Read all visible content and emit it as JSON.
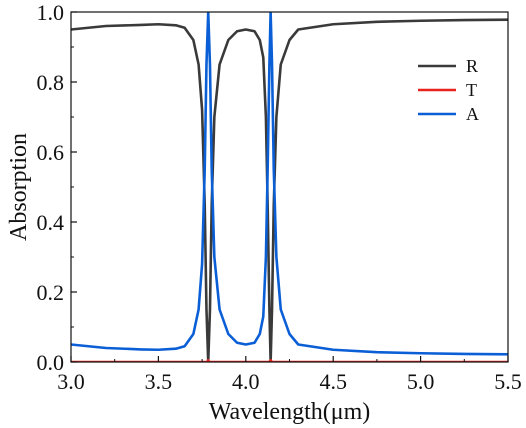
{
  "chart_data": {
    "type": "line",
    "xlabel": "Wavelength(μm)",
    "ylabel": "Absorption",
    "xlim": [
      3.0,
      5.5
    ],
    "ylim": [
      0.0,
      1.0
    ],
    "x_ticks": [
      "3.0",
      "3.5",
      "4.0",
      "4.5",
      "5.0",
      "5.5"
    ],
    "y_ticks": [
      "0.0",
      "0.2",
      "0.4",
      "0.6",
      "0.8",
      "1.0"
    ],
    "grid": false,
    "legend_position": "top-right",
    "series": [
      {
        "name": "R",
        "color": "#3a3a3a",
        "points": [
          [
            3.0,
            0.95
          ],
          [
            3.2,
            0.96
          ],
          [
            3.4,
            0.963
          ],
          [
            3.5,
            0.965
          ],
          [
            3.6,
            0.962
          ],
          [
            3.65,
            0.955
          ],
          [
            3.7,
            0.92
          ],
          [
            3.73,
            0.85
          ],
          [
            3.75,
            0.72
          ],
          [
            3.765,
            0.45
          ],
          [
            3.775,
            0.15
          ],
          [
            3.785,
            0.0
          ],
          [
            3.795,
            0.15
          ],
          [
            3.805,
            0.45
          ],
          [
            3.82,
            0.7
          ],
          [
            3.85,
            0.85
          ],
          [
            3.9,
            0.92
          ],
          [
            3.95,
            0.945
          ],
          [
            4.0,
            0.95
          ],
          [
            4.05,
            0.945
          ],
          [
            4.08,
            0.92
          ],
          [
            4.1,
            0.87
          ],
          [
            4.115,
            0.7
          ],
          [
            4.125,
            0.45
          ],
          [
            4.135,
            0.15
          ],
          [
            4.142,
            0.0
          ],
          [
            4.15,
            0.15
          ],
          [
            4.16,
            0.45
          ],
          [
            4.175,
            0.7
          ],
          [
            4.2,
            0.85
          ],
          [
            4.25,
            0.92
          ],
          [
            4.3,
            0.95
          ],
          [
            4.5,
            0.965
          ],
          [
            4.75,
            0.972
          ],
          [
            5.0,
            0.975
          ],
          [
            5.25,
            0.977
          ],
          [
            5.5,
            0.978
          ]
        ]
      },
      {
        "name": "T",
        "color": "#e8231d",
        "points": [
          [
            3.0,
            0.0
          ],
          [
            3.78,
            0.0
          ],
          [
            3.785,
            0.005
          ],
          [
            3.79,
            0.0
          ],
          [
            4.135,
            0.0
          ],
          [
            4.142,
            0.005
          ],
          [
            4.15,
            0.0
          ],
          [
            5.5,
            0.0
          ]
        ]
      },
      {
        "name": "A",
        "color": "#0b5fd6",
        "points": [
          [
            3.0,
            0.05
          ],
          [
            3.2,
            0.04
          ],
          [
            3.4,
            0.036
          ],
          [
            3.5,
            0.035
          ],
          [
            3.6,
            0.038
          ],
          [
            3.65,
            0.045
          ],
          [
            3.7,
            0.08
          ],
          [
            3.73,
            0.15
          ],
          [
            3.75,
            0.28
          ],
          [
            3.765,
            0.55
          ],
          [
            3.775,
            0.85
          ],
          [
            3.785,
            1.0
          ],
          [
            3.795,
            0.85
          ],
          [
            3.805,
            0.55
          ],
          [
            3.82,
            0.3
          ],
          [
            3.85,
            0.15
          ],
          [
            3.9,
            0.08
          ],
          [
            3.95,
            0.055
          ],
          [
            4.0,
            0.05
          ],
          [
            4.05,
            0.055
          ],
          [
            4.08,
            0.08
          ],
          [
            4.1,
            0.13
          ],
          [
            4.115,
            0.3
          ],
          [
            4.125,
            0.55
          ],
          [
            4.135,
            0.85
          ],
          [
            4.142,
            1.0
          ],
          [
            4.15,
            0.85
          ],
          [
            4.16,
            0.55
          ],
          [
            4.175,
            0.3
          ],
          [
            4.2,
            0.15
          ],
          [
            4.25,
            0.08
          ],
          [
            4.3,
            0.05
          ],
          [
            4.5,
            0.035
          ],
          [
            4.75,
            0.028
          ],
          [
            5.0,
            0.025
          ],
          [
            5.25,
            0.023
          ],
          [
            5.5,
            0.022
          ]
        ]
      }
    ]
  }
}
